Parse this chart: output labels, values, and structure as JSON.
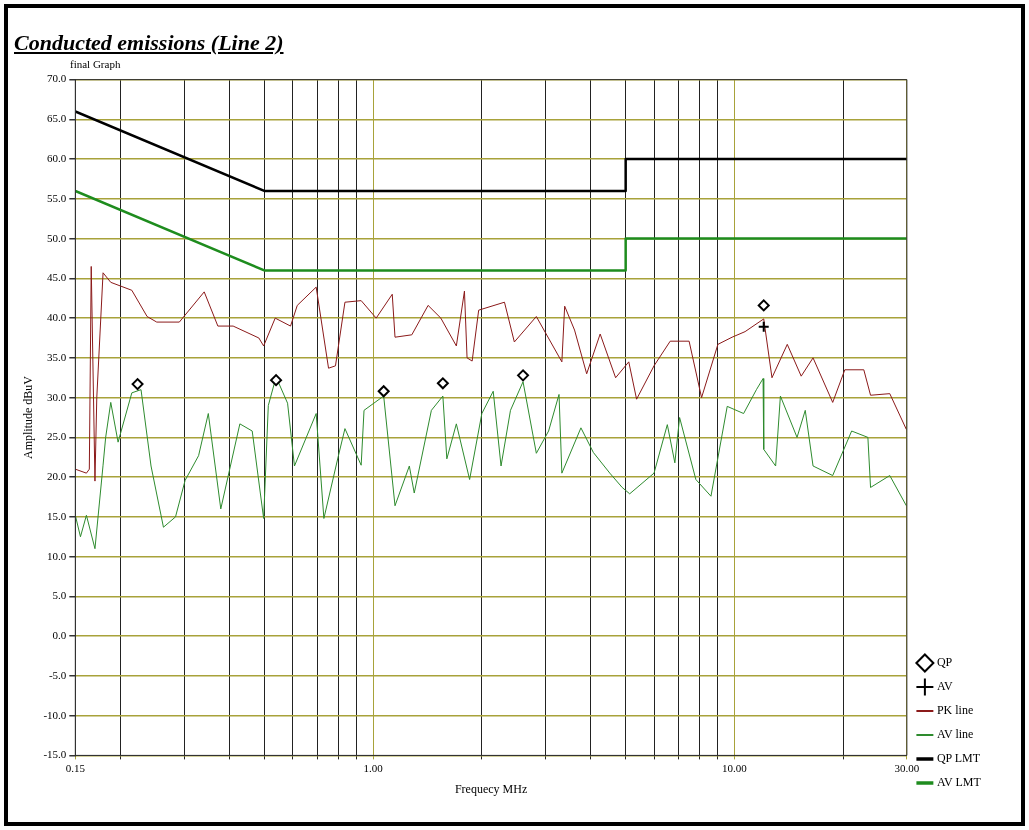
{
  "chart_data": {
    "type": "line",
    "title": "Conducted emissions (Line 2)",
    "subtitle": "final Graph",
    "xlabel": "Frequecy MHz",
    "ylabel": "Amplitude dBuV",
    "log": "x",
    "grid": true,
    "legend": "bottom right",
    "xlim": [
      0.15,
      30
    ],
    "ylim": [
      -15,
      70
    ],
    "xticks": [
      {
        "value": 0.15,
        "label": "0.15"
      },
      {
        "value": 0.2,
        "label": null
      },
      {
        "value": 0.3,
        "label": null
      },
      {
        "value": 0.4,
        "label": null
      },
      {
        "value": 0.5,
        "label": null
      },
      {
        "value": 0.6,
        "label": null
      },
      {
        "value": 0.7,
        "label": null
      },
      {
        "value": 0.8,
        "label": null
      },
      {
        "value": 0.9,
        "label": null
      },
      {
        "value": 1,
        "label": "1.00"
      },
      {
        "value": 2,
        "label": null
      },
      {
        "value": 3,
        "label": null
      },
      {
        "value": 4,
        "label": null
      },
      {
        "value": 5,
        "label": null
      },
      {
        "value": 6,
        "label": null
      },
      {
        "value": 7,
        "label": null
      },
      {
        "value": 8,
        "label": null
      },
      {
        "value": 9,
        "label": null
      },
      {
        "value": 10,
        "label": "10.00"
      },
      {
        "value": 20,
        "label": null
      },
      {
        "value": 30,
        "label": "30.00"
      }
    ],
    "yticks": [
      {
        "value": -15,
        "label": "-15.0"
      },
      {
        "value": -10,
        "label": "-10.0"
      },
      {
        "value": -5,
        "label": "-5.0"
      },
      {
        "value": 0,
        "label": "0.0"
      },
      {
        "value": 5,
        "label": "5.0"
      },
      {
        "value": 10,
        "label": "10.0"
      },
      {
        "value": 15,
        "label": "15.0"
      },
      {
        "value": 20,
        "label": "20.0"
      },
      {
        "value": 25,
        "label": "25.0"
      },
      {
        "value": 30,
        "label": "30.0"
      },
      {
        "value": 35,
        "label": "35.0"
      },
      {
        "value": 40,
        "label": "40.0"
      },
      {
        "value": 45,
        "label": "45.0"
      },
      {
        "value": 50,
        "label": "50.0"
      },
      {
        "value": 55,
        "label": "55.0"
      },
      {
        "value": 60,
        "label": "60.0"
      },
      {
        "value": 65,
        "label": "65.0"
      },
      {
        "value": 70,
        "label": "70.0"
      }
    ],
    "series": [
      {
        "name": "PK line",
        "type": "line",
        "marker": "none",
        "color": "#8b1a1a",
        "x": [
          0.15,
          0.161,
          0.164,
          0.166,
          0.17,
          0.172,
          0.179,
          0.188,
          0.215,
          0.237,
          0.252,
          0.291,
          0.341,
          0.372,
          0.41,
          0.483,
          0.498,
          0.536,
          0.591,
          0.617,
          0.696,
          0.753,
          0.787,
          0.836,
          0.927,
          1.02,
          1.13,
          1.15,
          1.28,
          1.42,
          1.54,
          1.7,
          1.79,
          1.82,
          1.88,
          1.96,
          2.31,
          2.46,
          2.83,
          3.33,
          3.39,
          3.61,
          3.9,
          4.25,
          4.69,
          5.1,
          5.36,
          5.99,
          6.64,
          7.49,
          8.11,
          9.0,
          9.85,
          10.7,
          12.05,
          12.7,
          14.0,
          15.3,
          16.5,
          18.7,
          20.2,
          22.8,
          23.8,
          26.9,
          29.9
        ],
        "values": [
          21,
          20.5,
          21,
          46.5,
          19.5,
          30,
          45.7,
          44.5,
          43.5,
          40.2,
          39.5,
          39.5,
          43.3,
          39,
          39,
          37.5,
          36.5,
          40,
          39,
          41.6,
          43.9,
          33.7,
          34,
          42,
          42.2,
          40,
          43,
          37.6,
          37.9,
          41.6,
          40,
          36.5,
          43.4,
          35,
          34.6,
          41,
          42,
          37,
          40.2,
          34.5,
          41.5,
          38.5,
          33,
          38,
          32.5,
          34.5,
          29.8,
          34,
          37.1,
          37.1,
          30,
          36.7,
          37.6,
          38.3,
          39.9,
          32.5,
          36.7,
          32.7,
          35,
          29.4,
          33.5,
          33.5,
          30.3,
          30.5,
          26
        ]
      },
      {
        "name": "AV line",
        "marker": "none",
        "color": "#2e8b2e",
        "x": [
          0.15,
          0.155,
          0.161,
          0.17,
          0.179,
          0.182,
          0.188,
          0.197,
          0.215,
          0.228,
          0.243,
          0.263,
          0.284,
          0.302,
          0.329,
          0.35,
          0.379,
          0.428,
          0.463,
          0.498,
          0.513,
          0.539,
          0.58,
          0.606,
          0.696,
          0.731,
          0.801,
          0.836,
          0.927,
          0.944,
          1.07,
          1.15,
          1.26,
          1.3,
          1.45,
          1.56,
          1.6,
          1.7,
          1.85,
          2.0,
          2.15,
          2.26,
          2.4,
          2.6,
          2.83,
          3.06,
          3.27,
          3.33,
          3.76,
          4.07,
          4.52,
          4.89,
          5.13,
          5.99,
          6.52,
          6.84,
          7.05,
          7.82,
          8.61,
          9.55,
          10.6,
          11.5,
          12.0,
          12.05,
          13.0,
          13.4,
          14.9,
          15.7,
          16.5,
          18.7,
          21.1,
          23.4,
          23.8,
          26.9,
          29.9
        ],
        "values": [
          15.2,
          12.5,
          15.2,
          11,
          21.5,
          25,
          29.4,
          24.4,
          30.6,
          31,
          21.4,
          13.7,
          15,
          19.6,
          22.7,
          28,
          16,
          26.7,
          25.8,
          14.8,
          29,
          32.6,
          29.3,
          21.4,
          28,
          14.8,
          22.6,
          26.1,
          21.5,
          28.4,
          30.2,
          16.4,
          21.4,
          18,
          28.4,
          30.2,
          22.3,
          26.7,
          19.7,
          28,
          30.8,
          21.4,
          28.4,
          32,
          23,
          25.8,
          30.4,
          20.5,
          26.2,
          23.1,
          20.5,
          18.7,
          17.9,
          20.5,
          26.6,
          21.8,
          27.5,
          19.7,
          17.6,
          28.9,
          28,
          31,
          32.4,
          23.5,
          21.4,
          30.2,
          25,
          28.4,
          21.4,
          20.2,
          25.8,
          25,
          18.7,
          20.2,
          16.4
        ]
      },
      {
        "name": "QP LMT",
        "type": "line",
        "marker": "none",
        "color": "#000000",
        "x": [
          0.15,
          0.5,
          5,
          5,
          30
        ],
        "values": [
          66,
          56,
          56,
          60,
          60
        ]
      },
      {
        "name": "AV LMT",
        "marker": "none",
        "color": "#1e8c1e",
        "x": [
          0.15,
          0.5,
          5,
          5,
          30
        ],
        "values": [
          56,
          46,
          46,
          50,
          50
        ]
      },
      {
        "name": "QP",
        "type": "scatter",
        "marker": "diamond",
        "color": "#000000",
        "x": [
          0.223,
          0.539,
          1.07,
          1.56,
          2.6,
          12.05
        ],
        "values": [
          31.7,
          32.2,
          30.8,
          31.8,
          32.8,
          41.6
        ]
      },
      {
        "name": "AV",
        "type": "scatter",
        "marker": "cross",
        "color": "#000000",
        "x": [
          12.05
        ],
        "values": [
          38.9
        ]
      }
    ]
  }
}
